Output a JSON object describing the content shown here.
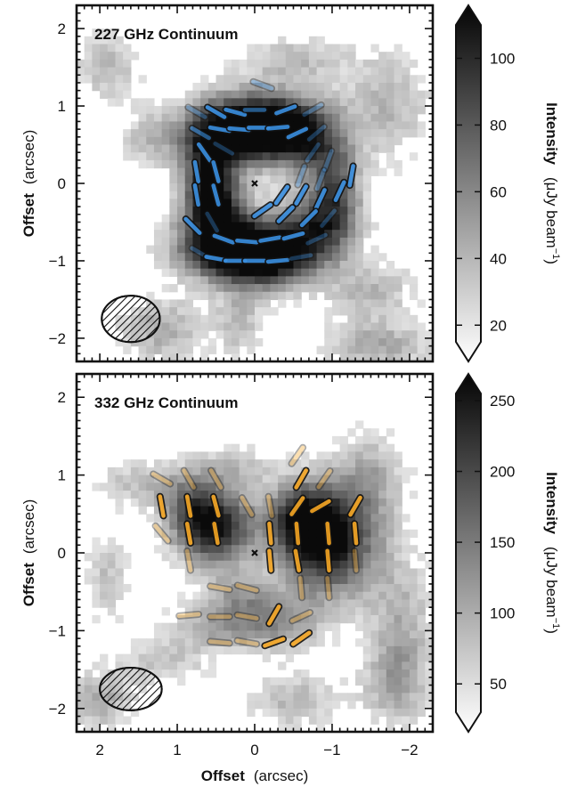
{
  "chart_data": [
    {
      "type": "heatmap",
      "title": "227 GHz Continuum",
      "xlabel": "",
      "ylabel_bold": "Offset",
      "ylabel_unit": "(arcsec)",
      "xlim": [
        2.3,
        -2.3
      ],
      "ylim": [
        -2.3,
        2.3
      ],
      "x_ticks": [
        2,
        1,
        0,
        -1,
        -2
      ],
      "y_ticks": [
        2,
        1,
        0,
        -1,
        -2
      ],
      "colorbar": {
        "label_bold": "Intensity",
        "label_unit": "(μJy beam",
        "label_sup": "−1",
        "label_close": ")",
        "range": [
          15,
          110
        ],
        "ticks": [
          100,
          80,
          60,
          40,
          20
        ],
        "colormap": "gray_r"
      },
      "vector_color": "#3a8fe0",
      "blobs": [
        {
          "x": 0.15,
          "y": 0.7,
          "sx": 0.45,
          "sy": 0.3,
          "a": 1.0
        },
        {
          "x": -0.35,
          "y": 0.75,
          "sx": 0.45,
          "sy": 0.3,
          "a": 0.7
        },
        {
          "x": 0.6,
          "y": 0.2,
          "sx": 0.25,
          "sy": 0.45,
          "a": 0.75
        },
        {
          "x": 0.4,
          "y": -0.8,
          "sx": 0.45,
          "sy": 0.3,
          "a": 0.95
        },
        {
          "x": -0.2,
          "y": -0.95,
          "sx": 0.45,
          "sy": 0.28,
          "a": 1.0
        },
        {
          "x": -0.8,
          "y": -0.55,
          "sx": 0.35,
          "sy": 0.3,
          "a": 0.65
        },
        {
          "x": -1.05,
          "y": -0.05,
          "sx": 0.22,
          "sy": 0.4,
          "a": 0.6
        },
        {
          "x": -0.7,
          "y": 0.5,
          "sx": 0.3,
          "sy": 0.3,
          "a": 0.45
        },
        {
          "x": 0.5,
          "y": -0.25,
          "sx": 0.25,
          "sy": 0.3,
          "a": 0.6
        },
        {
          "x": 1.2,
          "y": -1.9,
          "sx": 0.4,
          "sy": 0.3,
          "a": 0.35
        },
        {
          "x": -1.7,
          "y": 1.0,
          "sx": 0.4,
          "sy": 0.5,
          "a": 0.3
        },
        {
          "x": 1.3,
          "y": 0.6,
          "sx": 0.3,
          "sy": 0.25,
          "a": 0.3
        },
        {
          "x": -0.5,
          "y": 1.6,
          "sx": 0.5,
          "sy": 0.2,
          "a": 0.28
        },
        {
          "x": -1.5,
          "y": -1.4,
          "sx": 0.4,
          "sy": 0.3,
          "a": 0.3
        },
        {
          "x": 1.9,
          "y": 1.5,
          "sx": 0.3,
          "sy": 0.3,
          "a": 0.3
        },
        {
          "x": -1.6,
          "y": -2.1,
          "sx": 0.5,
          "sy": 0.2,
          "a": 0.35
        },
        {
          "x": 0.2,
          "y": -1.8,
          "sx": 0.2,
          "sy": 0.3,
          "a": 0.3
        }
      ],
      "vectors": [
        {
          "x": -0.1,
          "y": 1.27,
          "pa": 70,
          "s": 0.35
        },
        {
          "x": 0.75,
          "y": 0.92,
          "pa": 60,
          "s": 0.35
        },
        {
          "x": 0.5,
          "y": 0.92,
          "pa": 60,
          "s": 0.9
        },
        {
          "x": 0.25,
          "y": 0.92,
          "pa": 75,
          "s": 0.9
        },
        {
          "x": 0.0,
          "y": 0.95,
          "pa": 90,
          "s": 0.6
        },
        {
          "x": -0.4,
          "y": 0.95,
          "pa": -70,
          "s": 0.9
        },
        {
          "x": -0.75,
          "y": 0.95,
          "pa": -60,
          "s": 0.35
        },
        {
          "x": 0.7,
          "y": 0.65,
          "pa": 60,
          "s": 0.6
        },
        {
          "x": 0.45,
          "y": 0.7,
          "pa": 80,
          "s": 0.9
        },
        {
          "x": 0.2,
          "y": 0.7,
          "pa": 85,
          "s": 0.9
        },
        {
          "x": -0.05,
          "y": 0.72,
          "pa": 90,
          "s": 0.9
        },
        {
          "x": -0.3,
          "y": 0.72,
          "pa": 95,
          "s": 0.9
        },
        {
          "x": -0.55,
          "y": 0.65,
          "pa": -65,
          "s": 0.9
        },
        {
          "x": -0.8,
          "y": 0.65,
          "pa": -50,
          "s": 0.35
        },
        {
          "x": 0.65,
          "y": 0.4,
          "pa": 35,
          "s": 0.9
        },
        {
          "x": 0.4,
          "y": 0.45,
          "pa": 60,
          "s": 0.35
        },
        {
          "x": -0.75,
          "y": 0.4,
          "pa": -35,
          "s": 0.35
        },
        {
          "x": -0.95,
          "y": 0.3,
          "pa": -20,
          "s": 0.35
        },
        {
          "x": 0.75,
          "y": 0.15,
          "pa": 10,
          "s": 0.9
        },
        {
          "x": 0.5,
          "y": 0.15,
          "pa": 15,
          "s": 0.9
        },
        {
          "x": -0.6,
          "y": 0.1,
          "pa": -20,
          "s": 0.35
        },
        {
          "x": -0.85,
          "y": 0.05,
          "pa": -20,
          "s": 0.35
        },
        {
          "x": -1.25,
          "y": 0.1,
          "pa": -10,
          "s": 0.9
        },
        {
          "x": 0.75,
          "y": -0.15,
          "pa": 10,
          "s": 0.9
        },
        {
          "x": 0.5,
          "y": -0.15,
          "pa": 15,
          "s": 0.9
        },
        {
          "x": -0.35,
          "y": -0.15,
          "pa": -35,
          "s": 0.9
        },
        {
          "x": -0.6,
          "y": -0.15,
          "pa": -30,
          "s": 0.9
        },
        {
          "x": -0.85,
          "y": -0.2,
          "pa": -25,
          "s": 0.9
        },
        {
          "x": -1.1,
          "y": -0.1,
          "pa": -25,
          "s": 0.9
        },
        {
          "x": -0.1,
          "y": -0.35,
          "pa": -55,
          "s": 0.9
        },
        {
          "x": -0.4,
          "y": -0.4,
          "pa": -45,
          "s": 0.9
        },
        {
          "x": -0.7,
          "y": -0.45,
          "pa": -45,
          "s": 0.9
        },
        {
          "x": -0.95,
          "y": -0.45,
          "pa": -40,
          "s": 0.35
        },
        {
          "x": 0.55,
          "y": -0.5,
          "pa": 30,
          "s": 0.35
        },
        {
          "x": 0.8,
          "y": -0.55,
          "pa": 45,
          "s": 0.9
        },
        {
          "x": 0.4,
          "y": -0.72,
          "pa": 70,
          "s": 0.9
        },
        {
          "x": 0.1,
          "y": -0.75,
          "pa": 85,
          "s": 0.9
        },
        {
          "x": -0.2,
          "y": -0.72,
          "pa": 100,
          "s": 0.9
        },
        {
          "x": -0.5,
          "y": -0.68,
          "pa": -75,
          "s": 0.9
        },
        {
          "x": -0.8,
          "y": -0.72,
          "pa": -65,
          "s": 0.35
        },
        {
          "x": 0.7,
          "y": -0.9,
          "pa": 60,
          "s": 0.35
        },
        {
          "x": 0.5,
          "y": -0.97,
          "pa": 80,
          "s": 0.9
        },
        {
          "x": 0.25,
          "y": -1.0,
          "pa": 90,
          "s": 0.9
        },
        {
          "x": 0.0,
          "y": -1.0,
          "pa": 90,
          "s": 0.9
        },
        {
          "x": -0.3,
          "y": -1.0,
          "pa": 95,
          "s": 0.9
        },
        {
          "x": -0.6,
          "y": -0.95,
          "pa": -80,
          "s": 0.35
        }
      ],
      "beam": {
        "x": 1.6,
        "y": -1.75,
        "bmaj": 0.75,
        "bmin": 0.6,
        "pa": 90
      }
    },
    {
      "type": "heatmap",
      "title": "332 GHz Continuum",
      "xlabel_bold": "Offset",
      "xlabel_unit": "(arcsec)",
      "ylabel_bold": "Offset",
      "ylabel_unit": "(arcsec)",
      "xlim": [
        2.3,
        -2.3
      ],
      "ylim": [
        -2.3,
        2.3
      ],
      "x_ticks": [
        2,
        1,
        0,
        -1,
        -2
      ],
      "y_ticks": [
        2,
        1,
        0,
        -1,
        -2
      ],
      "colorbar": {
        "label_bold": "Intensity",
        "label_unit": "(μJy beam",
        "label_sup": "−1",
        "label_close": ")",
        "range": [
          30,
          255
        ],
        "ticks": [
          250,
          200,
          150,
          100,
          50
        ],
        "colormap": "gray_r"
      },
      "vector_color": "#f5a623",
      "blobs": [
        {
          "x": -0.95,
          "y": 0.15,
          "sx": 0.45,
          "sy": 0.5,
          "a": 1.0
        },
        {
          "x": -0.6,
          "y": 0.45,
          "sx": 0.3,
          "sy": 0.3,
          "a": 0.6
        },
        {
          "x": 0.5,
          "y": 0.3,
          "sx": 0.35,
          "sy": 0.35,
          "a": 0.85
        },
        {
          "x": 0.8,
          "y": 0.6,
          "sx": 0.3,
          "sy": 0.3,
          "a": 0.45
        },
        {
          "x": 0.5,
          "y": -0.95,
          "sx": 0.4,
          "sy": 0.22,
          "a": 0.35
        },
        {
          "x": -0.3,
          "y": -0.9,
          "sx": 0.4,
          "sy": 0.25,
          "a": 0.4
        },
        {
          "x": 0.2,
          "y": -0.55,
          "sx": 0.3,
          "sy": 0.2,
          "a": 0.3
        },
        {
          "x": -1.9,
          "y": -0.9,
          "sx": 0.3,
          "sy": 0.6,
          "a": 0.3
        },
        {
          "x": -1.5,
          "y": 1.0,
          "sx": 0.3,
          "sy": 0.4,
          "a": 0.3
        },
        {
          "x": 1.5,
          "y": 0.9,
          "sx": 0.4,
          "sy": 0.2,
          "a": 0.25
        },
        {
          "x": 1.9,
          "y": -0.3,
          "sx": 0.2,
          "sy": 0.4,
          "a": 0.25
        },
        {
          "x": 0.3,
          "y": 1.1,
          "sx": 0.4,
          "sy": 0.2,
          "a": 0.22
        },
        {
          "x": -0.5,
          "y": -1.9,
          "sx": 0.4,
          "sy": 0.25,
          "a": 0.3
        },
        {
          "x": 1.2,
          "y": -1.4,
          "sx": 0.4,
          "sy": 0.2,
          "a": 0.25
        },
        {
          "x": 2.0,
          "y": -1.9,
          "sx": 0.3,
          "sy": 0.25,
          "a": 0.35
        },
        {
          "x": -1.8,
          "y": -1.7,
          "sx": 0.3,
          "sy": 0.4,
          "a": 0.3
        }
      ],
      "vectors": [
        {
          "x": 1.2,
          "y": 0.95,
          "pa": 60,
          "s": 0.35
        },
        {
          "x": 0.85,
          "y": 0.95,
          "pa": 30,
          "s": 0.35
        },
        {
          "x": 0.5,
          "y": 0.95,
          "pa": 30,
          "s": 0.35
        },
        {
          "x": -0.55,
          "y": 1.25,
          "pa": -35,
          "s": 0.35
        },
        {
          "x": -0.6,
          "y": 0.95,
          "pa": -30,
          "s": 0.9
        },
        {
          "x": -0.9,
          "y": 0.95,
          "pa": -35,
          "s": 0.35
        },
        {
          "x": 1.2,
          "y": 0.6,
          "pa": 10,
          "s": 0.9
        },
        {
          "x": 0.85,
          "y": 0.6,
          "pa": 10,
          "s": 0.9
        },
        {
          "x": 0.5,
          "y": 0.6,
          "pa": 15,
          "s": 0.9
        },
        {
          "x": 0.1,
          "y": 0.6,
          "pa": 30,
          "s": 0.35
        },
        {
          "x": -0.2,
          "y": 0.6,
          "pa": 10,
          "s": 0.35
        },
        {
          "x": -0.55,
          "y": 0.6,
          "pa": -35,
          "s": 0.9
        },
        {
          "x": -0.85,
          "y": 0.6,
          "pa": -60,
          "s": 0.9
        },
        {
          "x": -1.3,
          "y": 0.6,
          "pa": -30,
          "s": 0.9
        },
        {
          "x": 1.2,
          "y": 0.25,
          "pa": 40,
          "s": 0.35
        },
        {
          "x": 0.85,
          "y": 0.25,
          "pa": 10,
          "s": 0.9
        },
        {
          "x": 0.5,
          "y": 0.25,
          "pa": 10,
          "s": 0.9
        },
        {
          "x": -0.2,
          "y": 0.25,
          "pa": 5,
          "s": 0.9
        },
        {
          "x": -0.55,
          "y": 0.25,
          "pa": 5,
          "s": 0.9
        },
        {
          "x": -0.95,
          "y": 0.25,
          "pa": 5,
          "s": 0.9
        },
        {
          "x": -1.3,
          "y": 0.25,
          "pa": 5,
          "s": 0.9
        },
        {
          "x": 0.85,
          "y": -0.1,
          "pa": 10,
          "s": 0.35
        },
        {
          "x": -0.2,
          "y": -0.1,
          "pa": 5,
          "s": 0.9
        },
        {
          "x": -0.55,
          "y": -0.1,
          "pa": 10,
          "s": 0.9
        },
        {
          "x": -0.95,
          "y": -0.1,
          "pa": 5,
          "s": 0.9
        },
        {
          "x": -1.3,
          "y": -0.1,
          "pa": 5,
          "s": 0.35
        },
        {
          "x": -0.6,
          "y": -0.45,
          "pa": 5,
          "s": 0.35
        },
        {
          "x": -0.95,
          "y": -0.45,
          "pa": 5,
          "s": 0.35
        },
        {
          "x": 0.45,
          "y": -0.45,
          "pa": 80,
          "s": 0.35
        },
        {
          "x": 0.1,
          "y": -0.45,
          "pa": 75,
          "s": 0.35
        },
        {
          "x": 0.85,
          "y": -0.8,
          "pa": 95,
          "s": 0.35
        },
        {
          "x": 0.45,
          "y": -0.82,
          "pa": 90,
          "s": 0.35
        },
        {
          "x": 0.1,
          "y": -0.82,
          "pa": 80,
          "s": 0.35
        },
        {
          "x": -0.25,
          "y": -0.8,
          "pa": -30,
          "s": 0.9
        },
        {
          "x": -0.6,
          "y": -0.82,
          "pa": -65,
          "s": 0.35
        },
        {
          "x": 0.45,
          "y": -1.15,
          "pa": 85,
          "s": 0.35
        },
        {
          "x": 0.1,
          "y": -1.15,
          "pa": 80,
          "s": 0.35
        },
        {
          "x": -0.25,
          "y": -1.15,
          "pa": -70,
          "s": 0.9
        },
        {
          "x": -0.6,
          "y": -1.1,
          "pa": -55,
          "s": 0.9
        }
      ],
      "beam": {
        "x": 1.6,
        "y": -1.75,
        "bmaj": 0.8,
        "bmin": 0.55,
        "pa": 90
      }
    }
  ]
}
